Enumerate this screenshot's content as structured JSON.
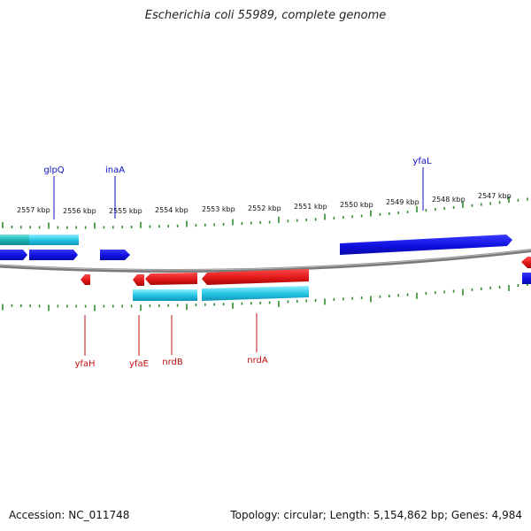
{
  "title": "Escherichia coli 55989, complete genome",
  "footer": {
    "accession": "Accession: NC_011748",
    "summary": "Topology: circular; Length: 5,154,862 bp; Genes: 4,984"
  },
  "colors": {
    "backbone": "#888888",
    "tick": "#2e8b2e",
    "forward_gene": "#1010e0",
    "reverse_gene": "#e01818",
    "cyan_track": "#26c6e6",
    "forward_label": "#1010c0",
    "reverse_label": "#c01010"
  },
  "ruler_labels": [
    "2557 kbp",
    "2556 kbp",
    "2555 kbp",
    "2554 kbp",
    "2553 kbp",
    "2552 kbp",
    "2551 kbp",
    "2550 kbp",
    "2549 kbp",
    "2548 kbp",
    "2547 kbp"
  ],
  "gene_labels_forward": [
    "glpQ",
    "inaA",
    "yfaL"
  ],
  "gene_labels_reverse": [
    "yfaH",
    "yfaE",
    "nrdB",
    "nrdA"
  ]
}
